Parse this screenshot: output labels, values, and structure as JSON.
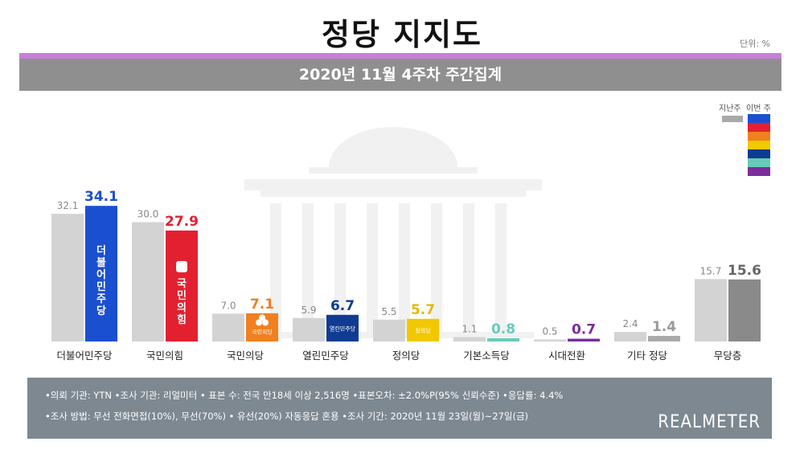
{
  "header": {
    "title": "정당 지지도",
    "unit": "단위: %",
    "subtitle": "2020년 11월 4주차 주간집계"
  },
  "legend": {
    "prev_label": "지난주",
    "curr_label": "이번 주",
    "prev_color": "#d3d3d3",
    "curr_colors": [
      "#1a4fd0",
      "#e3202f",
      "#f08020",
      "#f2c800",
      "#0f3c92",
      "#66cbb8",
      "#7b2d9a"
    ]
  },
  "chart_data": {
    "type": "bar",
    "categories": [
      "더불어민주당",
      "국민의힘",
      "국민의당",
      "열린민주당",
      "정의당",
      "기본소득당",
      "시대전환",
      "기타 정당",
      "무당층"
    ],
    "series": [
      {
        "name": "지난주",
        "values": [
          32.1,
          30.0,
          7.0,
          5.9,
          5.5,
          1.1,
          0.5,
          2.4,
          15.7
        ]
      },
      {
        "name": "이번 주",
        "values": [
          34.1,
          27.9,
          7.1,
          6.7,
          5.7,
          0.8,
          0.7,
          1.4,
          15.6
        ]
      }
    ],
    "value_labels_prev": [
      "32.1",
      "30.0",
      "7.0",
      "5.9",
      "5.5",
      "1.1",
      "0.5",
      "2.4",
      "15.7"
    ],
    "value_labels_curr": [
      "34.1",
      "27.9",
      "7.1",
      "6.7",
      "5.7",
      "0.8",
      "0.7",
      "1.4",
      "15.6"
    ],
    "prev_color": "#d3d3d3",
    "curr_colors": [
      "#1a4fd0",
      "#e3202f",
      "#f08020",
      "#0f3c92",
      "#f2c800",
      "#66cbb8",
      "#7b2d9a",
      "#a9a9a9",
      "#8a8a8a"
    ],
    "curr_label_colors": [
      "#1a4fd0",
      "#e3202f",
      "#f08020",
      "#0f3c92",
      "#e6b800",
      "#66cbb8",
      "#7b2d9a",
      "#999999",
      "#666666"
    ],
    "bar_logos": [
      "더불어민주당",
      "국민의힘",
      "국민의당",
      "열린민주당",
      "정의당",
      "",
      "",
      "",
      ""
    ],
    "ylim": [
      0,
      40
    ]
  },
  "footer": {
    "line1": "•의뢰 기관: YTN •조사 기관: 리얼미터 • 표본 수: 전국 만18세 이상 2,516명 •표본오차: ±2.0%P(95% 신뢰수준) •응답률: 4.4%",
    "line2": "•조사 방법: 무선 전화면접(10%), 무선(70%) • 유선(20%) 자동응답 혼용  •조사 기간: 2020년 11월 23일(월)~27일(금)",
    "brand": "REALMETER"
  }
}
